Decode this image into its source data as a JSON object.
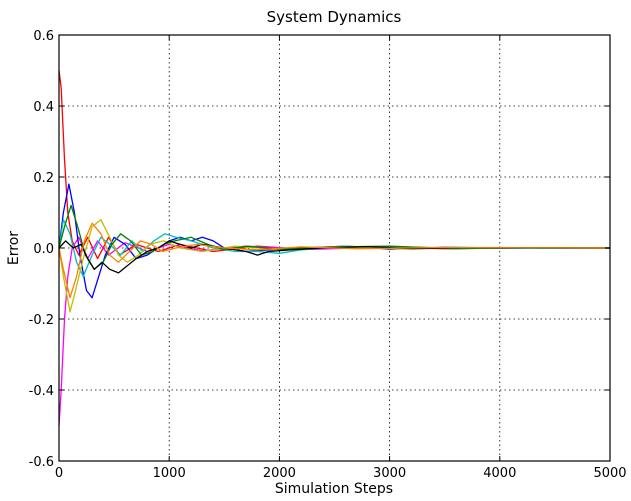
{
  "chart_data": {
    "type": "line",
    "title": "System Dynamics",
    "xlabel": "Simulation Steps",
    "ylabel": "Error",
    "xlim": [
      0,
      5000
    ],
    "ylim": [
      -0.6,
      0.6
    ],
    "xticks": [
      0,
      1000,
      2000,
      3000,
      4000,
      5000
    ],
    "xtick_labels": [
      "0",
      "1000",
      "2000",
      "3000",
      "4000",
      "5000"
    ],
    "yticks": [
      -0.6,
      -0.4,
      -0.2,
      0.0,
      0.2,
      0.4,
      0.6
    ],
    "ytick_labels": [
      "-0.6",
      "-0.4",
      "-0.2",
      "0.0",
      "0.2",
      "0.4",
      "0.6"
    ],
    "grid": true,
    "legend": "none",
    "series": [
      {
        "color": "#ff0000",
        "points": [
          [
            0,
            0.5
          ],
          [
            20,
            0.45
          ],
          [
            50,
            0.25
          ],
          [
            80,
            0.1
          ],
          [
            120,
            0.02
          ],
          [
            180,
            -0.02
          ],
          [
            260,
            0.03
          ],
          [
            350,
            -0.03
          ],
          [
            450,
            0.03
          ],
          [
            550,
            -0.02
          ],
          [
            700,
            0.01
          ],
          [
            900,
            -0.01
          ],
          [
            1100,
            0.01
          ],
          [
            1400,
            -0.01
          ],
          [
            1800,
            0.005
          ],
          [
            2200,
            -0.003
          ],
          [
            2800,
            0.003
          ],
          [
            3500,
            -0.002
          ],
          [
            4200,
            0.001
          ],
          [
            5000,
            0.0
          ]
        ]
      },
      {
        "color": "#ff00ff",
        "points": [
          [
            0,
            -0.5
          ],
          [
            20,
            -0.4
          ],
          [
            50,
            -0.2
          ],
          [
            80,
            -0.08
          ],
          [
            120,
            0.0
          ],
          [
            180,
            0.03
          ],
          [
            260,
            -0.03
          ],
          [
            350,
            0.02
          ],
          [
            450,
            -0.02
          ],
          [
            600,
            0.015
          ],
          [
            800,
            -0.01
          ],
          [
            1000,
            0.01
          ],
          [
            1300,
            -0.008
          ],
          [
            1700,
            0.005
          ],
          [
            2300,
            -0.004
          ],
          [
            3000,
            0.003
          ],
          [
            3800,
            -0.001
          ],
          [
            5000,
            0.0
          ]
        ]
      },
      {
        "color": "#0000ff",
        "points": [
          [
            0,
            0.0
          ],
          [
            40,
            0.1
          ],
          [
            90,
            0.18
          ],
          [
            140,
            0.1
          ],
          [
            190,
            -0.02
          ],
          [
            250,
            -0.12
          ],
          [
            300,
            -0.14
          ],
          [
            360,
            -0.08
          ],
          [
            420,
            -0.02
          ],
          [
            500,
            0.03
          ],
          [
            600,
            0.01
          ],
          [
            700,
            -0.03
          ],
          [
            800,
            -0.02
          ],
          [
            900,
            0.0
          ],
          [
            1000,
            0.02
          ],
          [
            1100,
            0.03
          ],
          [
            1200,
            0.02
          ],
          [
            1300,
            0.03
          ],
          [
            1400,
            0.02
          ],
          [
            1500,
            0.0
          ],
          [
            1700,
            -0.01
          ],
          [
            1900,
            -0.005
          ],
          [
            2200,
            0.0
          ],
          [
            2600,
            0.005
          ],
          [
            3000,
            -0.003
          ],
          [
            3500,
            0.002
          ],
          [
            4200,
            -0.001
          ],
          [
            5000,
            0.0
          ]
        ]
      },
      {
        "color": "#00bfbf",
        "points": [
          [
            0,
            0.0
          ],
          [
            40,
            0.08
          ],
          [
            100,
            0.04
          ],
          [
            160,
            -0.04
          ],
          [
            220,
            -0.08
          ],
          [
            300,
            -0.02
          ],
          [
            380,
            0.03
          ],
          [
            460,
            0.01
          ],
          [
            560,
            -0.02
          ],
          [
            660,
            0.02
          ],
          [
            760,
            -0.01
          ],
          [
            860,
            0.02
          ],
          [
            960,
            0.04
          ],
          [
            1060,
            0.03
          ],
          [
            1200,
            0.02
          ],
          [
            1400,
            0.0
          ],
          [
            1600,
            -0.01
          ],
          [
            1800,
            -0.01
          ],
          [
            2000,
            -0.015
          ],
          [
            2200,
            -0.005
          ],
          [
            2600,
            0.005
          ],
          [
            3000,
            0.0
          ],
          [
            3600,
            0.002
          ],
          [
            4300,
            -0.001
          ],
          [
            5000,
            0.0
          ]
        ]
      },
      {
        "color": "#bfbf00",
        "points": [
          [
            0,
            0.0
          ],
          [
            40,
            -0.08
          ],
          [
            100,
            -0.18
          ],
          [
            150,
            -0.12
          ],
          [
            220,
            -0.03
          ],
          [
            300,
            0.06
          ],
          [
            380,
            0.08
          ],
          [
            460,
            0.03
          ],
          [
            540,
            -0.02
          ],
          [
            620,
            -0.04
          ],
          [
            720,
            -0.02
          ],
          [
            820,
            0.01
          ],
          [
            950,
            0.02
          ],
          [
            1100,
            0.0
          ],
          [
            1300,
            -0.01
          ],
          [
            1600,
            0.005
          ],
          [
            2000,
            -0.005
          ],
          [
            2500,
            0.004
          ],
          [
            3100,
            -0.002
          ],
          [
            3800,
            0.001
          ],
          [
            5000,
            0.0
          ]
        ]
      },
      {
        "color": "#008000",
        "points": [
          [
            0,
            0.0
          ],
          [
            50,
            0.06
          ],
          [
            110,
            0.12
          ],
          [
            170,
            0.06
          ],
          [
            240,
            -0.02
          ],
          [
            320,
            -0.06
          ],
          [
            400,
            -0.04
          ],
          [
            480,
            0.01
          ],
          [
            560,
            0.04
          ],
          [
            650,
            0.02
          ],
          [
            750,
            -0.02
          ],
          [
            850,
            -0.01
          ],
          [
            950,
            0.01
          ],
          [
            1050,
            0.02
          ],
          [
            1200,
            0.03
          ],
          [
            1350,
            0.01
          ],
          [
            1500,
            -0.005
          ],
          [
            1700,
            0.005
          ],
          [
            2000,
            -0.003
          ],
          [
            2500,
            0.003
          ],
          [
            3000,
            0.005
          ],
          [
            3600,
            -0.002
          ],
          [
            4300,
            0.001
          ],
          [
            5000,
            0.0
          ]
        ]
      },
      {
        "color": "#000000",
        "points": [
          [
            0,
            0.0
          ],
          [
            60,
            0.02
          ],
          [
            130,
            0.0
          ],
          [
            200,
            0.01
          ],
          [
            260,
            -0.03
          ],
          [
            320,
            -0.06
          ],
          [
            390,
            -0.04
          ],
          [
            460,
            -0.06
          ],
          [
            540,
            -0.07
          ],
          [
            620,
            -0.05
          ],
          [
            700,
            -0.03
          ],
          [
            800,
            -0.01
          ],
          [
            900,
            0.0
          ],
          [
            1000,
            0.02
          ],
          [
            1100,
            0.01
          ],
          [
            1200,
            0.0
          ],
          [
            1300,
            0.01
          ],
          [
            1500,
            0.0
          ],
          [
            1700,
            -0.01
          ],
          [
            1800,
            -0.02
          ],
          [
            1900,
            -0.01
          ],
          [
            2100,
            -0.005
          ],
          [
            2400,
            0.0
          ],
          [
            2800,
            0.004
          ],
          [
            3200,
            -0.002
          ],
          [
            3800,
            0.001
          ],
          [
            4400,
            0.0
          ],
          [
            5000,
            0.0
          ]
        ]
      },
      {
        "color": "#ff8000",
        "points": [
          [
            0,
            0.0
          ],
          [
            40,
            -0.06
          ],
          [
            100,
            -0.14
          ],
          [
            160,
            -0.08
          ],
          [
            230,
            0.02
          ],
          [
            300,
            0.07
          ],
          [
            380,
            0.04
          ],
          [
            460,
            -0.02
          ],
          [
            540,
            -0.04
          ],
          [
            640,
            -0.01
          ],
          [
            740,
            0.02
          ],
          [
            840,
            0.01
          ],
          [
            940,
            -0.01
          ],
          [
            1060,
            0.0
          ],
          [
            1250,
            0.01
          ],
          [
            1500,
            0.0
          ],
          [
            1800,
            -0.005
          ],
          [
            2200,
            0.003
          ],
          [
            2700,
            -0.002
          ],
          [
            3400,
            0.001
          ],
          [
            5000,
            0.0
          ]
        ]
      }
    ]
  }
}
